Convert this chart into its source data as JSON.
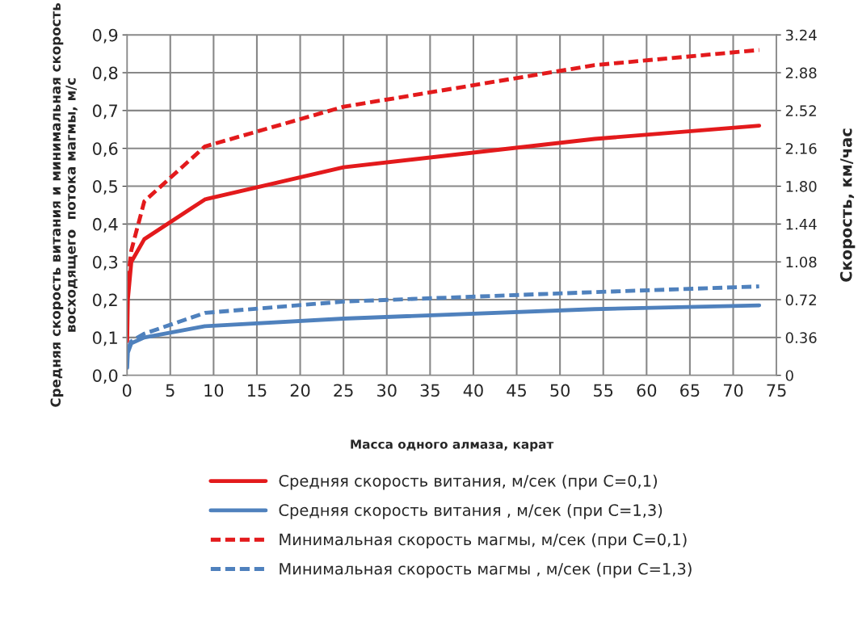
{
  "chart_data": {
    "type": "line",
    "xlabel": "Масса одного алмаза, карат",
    "ylabel": "Средняя скорость витания и минимальная скорость\nвосходящего  потока магмы, м/с",
    "y2label": "Скорость, км/час",
    "xlim": [
      0,
      75
    ],
    "xticks": [
      0,
      5,
      10,
      15,
      20,
      25,
      30,
      35,
      40,
      45,
      50,
      55,
      60,
      65,
      70,
      75
    ],
    "ylim": [
      0,
      0.9
    ],
    "yticks": [
      {
        "value": 0,
        "label": "0,0"
      },
      {
        "value": 0.1,
        "label": "0,1"
      },
      {
        "value": 0.2,
        "label": "0,2"
      },
      {
        "value": 0.3,
        "label": "0,3"
      },
      {
        "value": 0.4,
        "label": "0,4"
      },
      {
        "value": 0.5,
        "label": "0,5"
      },
      {
        "value": 0.6,
        "label": "0,6"
      },
      {
        "value": 0.7,
        "label": "0,7"
      },
      {
        "value": 0.8,
        "label": "0,8"
      },
      {
        "value": 0.9,
        "label": "0,9"
      }
    ],
    "y2lim": [
      0,
      3.24
    ],
    "y2ticks": [
      0,
      0.36,
      0.72,
      1.08,
      1.44,
      {
        "value": 1.8,
        "label": "1.80"
      },
      2.16,
      2.52,
      2.88,
      3.24
    ],
    "grid": true,
    "legend": "bottom",
    "marker": "none",
    "series": [
      {
        "name": "Средняя скорость витания, м/сек (при С=0,1)",
        "color": "#e31a1c",
        "line_style": "solid",
        "x": [
          0.02,
          0.1,
          0.5,
          2,
          9,
          25,
          54,
          73
        ],
        "values": [
          0.09,
          0.2,
          0.3,
          0.36,
          0.465,
          0.55,
          0.625,
          0.66
        ]
      },
      {
        "name": "Средняя скорость витания , м/сек (при С=1,3)",
        "color": "#4f81bd",
        "line_style": "solid",
        "x": [
          0.02,
          0.1,
          0.5,
          2,
          9,
          25,
          54,
          73
        ],
        "values": [
          0.02,
          0.06,
          0.085,
          0.1,
          0.13,
          0.15,
          0.175,
          0.185
        ]
      },
      {
        "name": "Минимальная скорость магмы, м/сек (при С=0,1)",
        "color": "#e31a1c",
        "line_style": "dashed",
        "x": [
          0.1,
          0.5,
          2,
          9,
          25,
          54,
          73
        ],
        "values": [
          0.25,
          0.33,
          0.46,
          0.605,
          0.71,
          0.82,
          0.86
        ]
      },
      {
        "name": "Минимальная скорость магмы , м/сек (при С=1,3)",
        "color": "#4f81bd",
        "line_style": "dashed",
        "x": [
          0.1,
          0.5,
          2,
          9,
          25,
          54,
          73
        ],
        "values": [
          0.07,
          0.09,
          0.11,
          0.165,
          0.195,
          0.22,
          0.235
        ]
      }
    ]
  }
}
